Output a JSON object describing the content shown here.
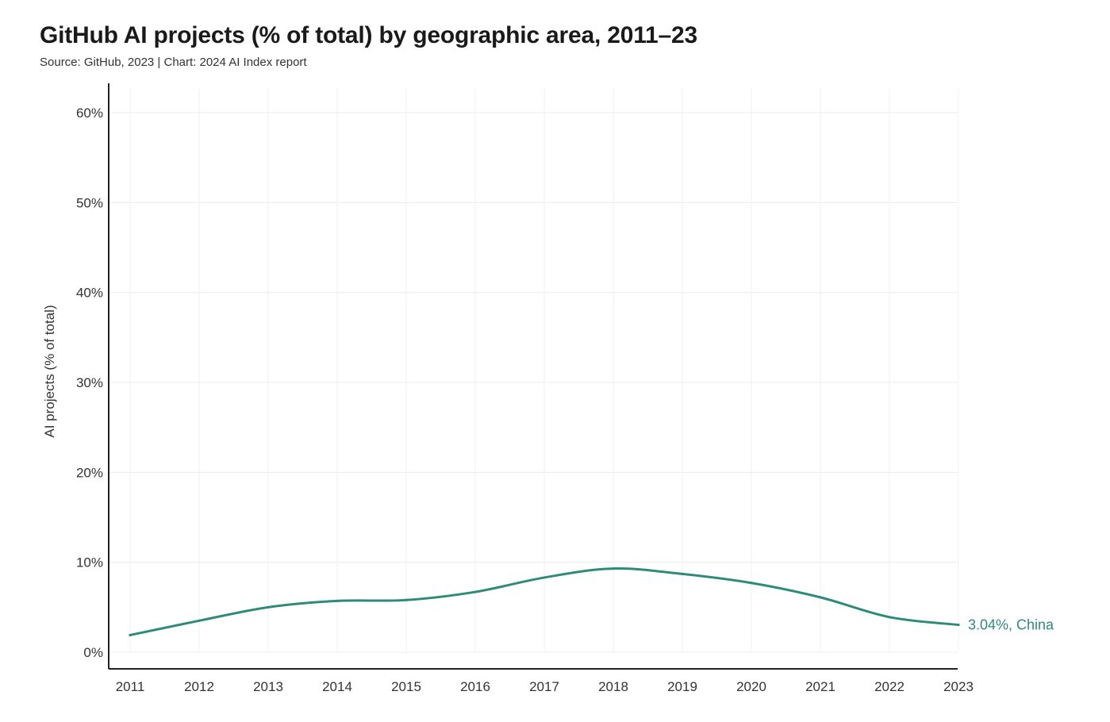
{
  "title": "GitHub AI projects (% of total) by geographic area, 2011–23",
  "subtitle": "Source: GitHub, 2023 | Chart: 2024 AI Index report",
  "chart_data": {
    "type": "line",
    "title": "GitHub AI projects (% of total) by geographic area, 2011–23",
    "subtitle": "Source: GitHub, 2023 | Chart: 2024 AI Index report",
    "xlabel": "",
    "ylabel": "AI projects (% of total)",
    "x": [
      "2011",
      "2012",
      "2013",
      "2014",
      "2015",
      "2016",
      "2017",
      "2018",
      "2019",
      "2020",
      "2021",
      "2022",
      "2023"
    ],
    "ylim": [
      0,
      60
    ],
    "yticks": [
      0,
      10,
      20,
      30,
      40,
      50,
      60
    ],
    "ytick_labels": [
      "0%",
      "10%",
      "20%",
      "30%",
      "40%",
      "50%",
      "60%"
    ],
    "grid": true,
    "series": [
      {
        "name": "China",
        "color": "#2e8b7a",
        "values": [
          1.9,
          3.5,
          5.0,
          5.7,
          5.8,
          6.7,
          8.3,
          9.3,
          8.7,
          7.7,
          6.1,
          3.9,
          3.04
        ],
        "end_label": "3.04%, China"
      }
    ]
  }
}
